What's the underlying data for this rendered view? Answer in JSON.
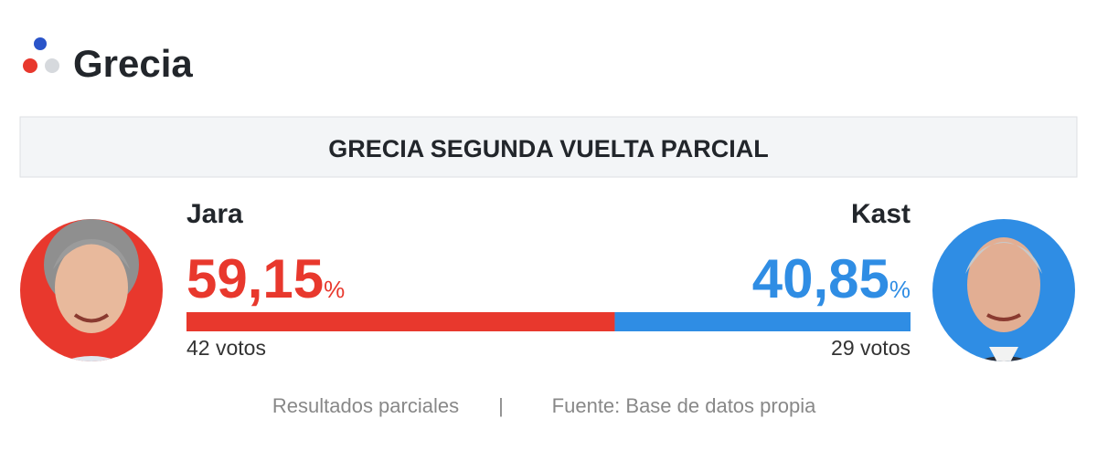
{
  "header": {
    "title": "Grecia"
  },
  "banner": "GRECIA SEGUNDA VUELTA PARCIAL",
  "percent_sign": "%",
  "candidates": [
    {
      "name": "Jara",
      "percent": 59.15,
      "percent_label": "59,15",
      "votes": "42 votos",
      "color": "#e8382d"
    },
    {
      "name": "Kast",
      "percent": 40.85,
      "percent_label": "40,85",
      "votes": "29 votos",
      "color": "#2f8de4"
    }
  ],
  "footer": {
    "note": "Resultados parciales",
    "separator": "|",
    "source": "Fuente: Base de datos propia"
  }
}
